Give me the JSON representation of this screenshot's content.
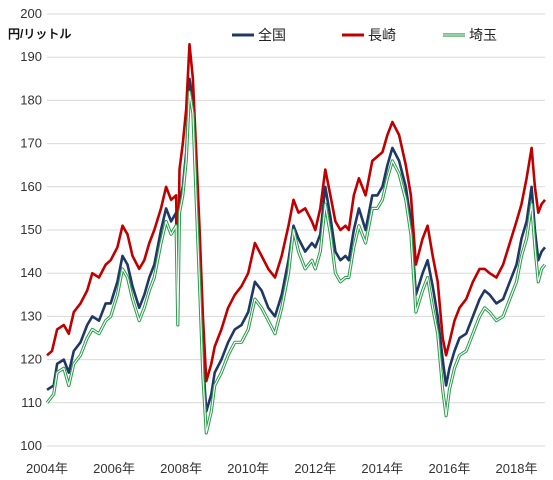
{
  "chart_data": {
    "type": "line",
    "ylabel": "円/リットル",
    "ylim": [
      100,
      200
    ],
    "yticks": [
      100,
      110,
      120,
      130,
      140,
      150,
      160,
      170,
      180,
      190,
      200
    ],
    "xlim": [
      2004,
      2018.85
    ],
    "xticks": [
      {
        "value": 2004,
        "label": "2004年"
      },
      {
        "value": 2006,
        "label": "2006年"
      },
      {
        "value": 2008,
        "label": "2008年"
      },
      {
        "value": 2010,
        "label": "2010年"
      },
      {
        "value": 2012,
        "label": "2012年"
      },
      {
        "value": 2014,
        "label": "2014年"
      },
      {
        "value": 2016,
        "label": "2016年"
      },
      {
        "value": 2018,
        "label": "2018年"
      }
    ],
    "grid": "horizontal",
    "legend": "top",
    "series": [
      {
        "name": "全国",
        "color": "#1f3864",
        "style": "solid",
        "points": [
          [
            2004.0,
            113
          ],
          [
            2004.2,
            114
          ],
          [
            2004.3,
            119
          ],
          [
            2004.5,
            120
          ],
          [
            2004.65,
            117
          ],
          [
            2004.8,
            122
          ],
          [
            2005.0,
            124
          ],
          [
            2005.2,
            128
          ],
          [
            2005.35,
            130
          ],
          [
            2005.55,
            129
          ],
          [
            2005.75,
            133
          ],
          [
            2005.9,
            133
          ],
          [
            2006.1,
            138
          ],
          [
            2006.25,
            144
          ],
          [
            2006.4,
            142
          ],
          [
            2006.55,
            137
          ],
          [
            2006.75,
            132
          ],
          [
            2006.9,
            135
          ],
          [
            2007.05,
            139
          ],
          [
            2007.2,
            142
          ],
          [
            2007.4,
            150
          ],
          [
            2007.55,
            155
          ],
          [
            2007.7,
            152
          ],
          [
            2007.85,
            154
          ],
          [
            2007.9,
            130
          ],
          [
            2007.95,
            156
          ],
          [
            2008.05,
            160
          ],
          [
            2008.15,
            168
          ],
          [
            2008.25,
            185
          ],
          [
            2008.35,
            180
          ],
          [
            2008.45,
            160
          ],
          [
            2008.55,
            140
          ],
          [
            2008.65,
            120
          ],
          [
            2008.75,
            108
          ],
          [
            2008.9,
            112
          ],
          [
            2009.0,
            117
          ],
          [
            2009.2,
            120
          ],
          [
            2009.4,
            124
          ],
          [
            2009.6,
            127
          ],
          [
            2009.8,
            128
          ],
          [
            2010.0,
            131
          ],
          [
            2010.2,
            138
          ],
          [
            2010.4,
            136
          ],
          [
            2010.6,
            132
          ],
          [
            2010.8,
            130
          ],
          [
            2011.0,
            135
          ],
          [
            2011.2,
            143
          ],
          [
            2011.35,
            151
          ],
          [
            2011.5,
            148
          ],
          [
            2011.7,
            145
          ],
          [
            2011.9,
            147
          ],
          [
            2012.0,
            146
          ],
          [
            2012.15,
            149
          ],
          [
            2012.3,
            160
          ],
          [
            2012.45,
            153
          ],
          [
            2012.6,
            145
          ],
          [
            2012.75,
            143
          ],
          [
            2012.9,
            144
          ],
          [
            2013.0,
            143
          ],
          [
            2013.15,
            150
          ],
          [
            2013.3,
            155
          ],
          [
            2013.5,
            150
          ],
          [
            2013.7,
            158
          ],
          [
            2013.85,
            158
          ],
          [
            2014.0,
            160
          ],
          [
            2014.15,
            165
          ],
          [
            2014.3,
            169
          ],
          [
            2014.5,
            166
          ],
          [
            2014.7,
            160
          ],
          [
            2014.85,
            152
          ],
          [
            2015.0,
            135
          ],
          [
            2015.2,
            140
          ],
          [
            2015.35,
            143
          ],
          [
            2015.5,
            137
          ],
          [
            2015.65,
            130
          ],
          [
            2015.8,
            120
          ],
          [
            2015.9,
            114
          ],
          [
            2016.0,
            118
          ],
          [
            2016.15,
            122
          ],
          [
            2016.3,
            125
          ],
          [
            2016.5,
            126
          ],
          [
            2016.7,
            130
          ],
          [
            2016.9,
            134
          ],
          [
            2017.05,
            136
          ],
          [
            2017.2,
            135
          ],
          [
            2017.4,
            133
          ],
          [
            2017.6,
            134
          ],
          [
            2017.8,
            138
          ],
          [
            2018.0,
            142
          ],
          [
            2018.15,
            148
          ],
          [
            2018.3,
            152
          ],
          [
            2018.45,
            160
          ],
          [
            2018.55,
            150
          ],
          [
            2018.65,
            143
          ],
          [
            2018.75,
            145
          ],
          [
            2018.85,
            146
          ]
        ]
      },
      {
        "name": "長崎",
        "color": "#c00000",
        "style": "solid",
        "points": [
          [
            2004.0,
            121
          ],
          [
            2004.15,
            122
          ],
          [
            2004.3,
            127
          ],
          [
            2004.5,
            128
          ],
          [
            2004.65,
            126
          ],
          [
            2004.8,
            131
          ],
          [
            2005.0,
            133
          ],
          [
            2005.2,
            136
          ],
          [
            2005.35,
            140
          ],
          [
            2005.55,
            139
          ],
          [
            2005.75,
            142
          ],
          [
            2005.9,
            143
          ],
          [
            2006.1,
            146
          ],
          [
            2006.25,
            151
          ],
          [
            2006.4,
            149
          ],
          [
            2006.55,
            144
          ],
          [
            2006.75,
            141
          ],
          [
            2006.9,
            143
          ],
          [
            2007.05,
            147
          ],
          [
            2007.2,
            150
          ],
          [
            2007.4,
            155
          ],
          [
            2007.55,
            160
          ],
          [
            2007.7,
            157
          ],
          [
            2007.85,
            158
          ],
          [
            2007.9,
            138
          ],
          [
            2007.95,
            164
          ],
          [
            2008.05,
            170
          ],
          [
            2008.15,
            178
          ],
          [
            2008.25,
            193
          ],
          [
            2008.35,
            185
          ],
          [
            2008.45,
            168
          ],
          [
            2008.55,
            150
          ],
          [
            2008.65,
            130
          ],
          [
            2008.75,
            115
          ],
          [
            2008.9,
            119
          ],
          [
            2009.0,
            123
          ],
          [
            2009.2,
            127
          ],
          [
            2009.4,
            132
          ],
          [
            2009.6,
            135
          ],
          [
            2009.8,
            137
          ],
          [
            2010.0,
            140
          ],
          [
            2010.2,
            147
          ],
          [
            2010.4,
            144
          ],
          [
            2010.6,
            141
          ],
          [
            2010.8,
            139
          ],
          [
            2011.0,
            144
          ],
          [
            2011.2,
            151
          ],
          [
            2011.35,
            157
          ],
          [
            2011.5,
            154
          ],
          [
            2011.7,
            155
          ],
          [
            2011.9,
            152
          ],
          [
            2012.0,
            150
          ],
          [
            2012.15,
            155
          ],
          [
            2012.3,
            164
          ],
          [
            2012.45,
            158
          ],
          [
            2012.6,
            152
          ],
          [
            2012.75,
            150
          ],
          [
            2012.9,
            151
          ],
          [
            2013.0,
            150
          ],
          [
            2013.15,
            158
          ],
          [
            2013.3,
            162
          ],
          [
            2013.5,
            158
          ],
          [
            2013.7,
            166
          ],
          [
            2013.85,
            167
          ],
          [
            2014.0,
            168
          ],
          [
            2014.15,
            172
          ],
          [
            2014.3,
            175
          ],
          [
            2014.5,
            172
          ],
          [
            2014.7,
            165
          ],
          [
            2014.85,
            158
          ],
          [
            2015.0,
            142
          ],
          [
            2015.2,
            148
          ],
          [
            2015.35,
            151
          ],
          [
            2015.5,
            144
          ],
          [
            2015.65,
            138
          ],
          [
            2015.8,
            125
          ],
          [
            2015.9,
            121
          ],
          [
            2016.0,
            124
          ],
          [
            2016.15,
            129
          ],
          [
            2016.3,
            132
          ],
          [
            2016.5,
            134
          ],
          [
            2016.7,
            138
          ],
          [
            2016.9,
            141
          ],
          [
            2017.05,
            141
          ],
          [
            2017.2,
            140
          ],
          [
            2017.4,
            139
          ],
          [
            2017.6,
            142
          ],
          [
            2017.8,
            147
          ],
          [
            2018.0,
            152
          ],
          [
            2018.15,
            156
          ],
          [
            2018.3,
            162
          ],
          [
            2018.45,
            169
          ],
          [
            2018.55,
            160
          ],
          [
            2018.65,
            154
          ],
          [
            2018.75,
            156
          ],
          [
            2018.85,
            157
          ]
        ]
      },
      {
        "name": "埼玉",
        "color": "#2e9e4f",
        "style": "double",
        "points": [
          [
            2004.0,
            110
          ],
          [
            2004.2,
            112
          ],
          [
            2004.3,
            117
          ],
          [
            2004.5,
            118
          ],
          [
            2004.65,
            114
          ],
          [
            2004.8,
            119
          ],
          [
            2005.0,
            121
          ],
          [
            2005.2,
            125
          ],
          [
            2005.35,
            127
          ],
          [
            2005.55,
            126
          ],
          [
            2005.75,
            129
          ],
          [
            2005.9,
            130
          ],
          [
            2006.1,
            135
          ],
          [
            2006.25,
            141
          ],
          [
            2006.4,
            139
          ],
          [
            2006.55,
            134
          ],
          [
            2006.75,
            129
          ],
          [
            2006.9,
            132
          ],
          [
            2007.05,
            136
          ],
          [
            2007.2,
            139
          ],
          [
            2007.4,
            147
          ],
          [
            2007.55,
            152
          ],
          [
            2007.7,
            149
          ],
          [
            2007.85,
            151
          ],
          [
            2007.9,
            128
          ],
          [
            2007.95,
            154
          ],
          [
            2008.05,
            158
          ],
          [
            2008.15,
            166
          ],
          [
            2008.25,
            182
          ],
          [
            2008.35,
            177
          ],
          [
            2008.45,
            157
          ],
          [
            2008.55,
            137
          ],
          [
            2008.65,
            116
          ],
          [
            2008.75,
            103
          ],
          [
            2008.9,
            108
          ],
          [
            2009.0,
            114
          ],
          [
            2009.2,
            117
          ],
          [
            2009.4,
            121
          ],
          [
            2009.6,
            124
          ],
          [
            2009.8,
            124
          ],
          [
            2010.0,
            127
          ],
          [
            2010.2,
            134
          ],
          [
            2010.4,
            132
          ],
          [
            2010.6,
            129
          ],
          [
            2010.8,
            126
          ],
          [
            2011.0,
            132
          ],
          [
            2011.2,
            140
          ],
          [
            2011.35,
            150
          ],
          [
            2011.5,
            145
          ],
          [
            2011.7,
            141
          ],
          [
            2011.9,
            143
          ],
          [
            2012.0,
            141
          ],
          [
            2012.15,
            145
          ],
          [
            2012.3,
            156
          ],
          [
            2012.45,
            149
          ],
          [
            2012.6,
            140
          ],
          [
            2012.75,
            138
          ],
          [
            2012.9,
            139
          ],
          [
            2013.0,
            139
          ],
          [
            2013.15,
            146
          ],
          [
            2013.3,
            151
          ],
          [
            2013.5,
            147
          ],
          [
            2013.7,
            155
          ],
          [
            2013.85,
            155
          ],
          [
            2014.0,
            157
          ],
          [
            2014.15,
            162
          ],
          [
            2014.3,
            166
          ],
          [
            2014.5,
            163
          ],
          [
            2014.7,
            157
          ],
          [
            2014.85,
            149
          ],
          [
            2015.0,
            131
          ],
          [
            2015.2,
            136
          ],
          [
            2015.35,
            139
          ],
          [
            2015.5,
            132
          ],
          [
            2015.65,
            126
          ],
          [
            2015.8,
            113
          ],
          [
            2015.9,
            107
          ],
          [
            2016.0,
            113
          ],
          [
            2016.15,
            118
          ],
          [
            2016.3,
            121
          ],
          [
            2016.5,
            122
          ],
          [
            2016.7,
            126
          ],
          [
            2016.9,
            130
          ],
          [
            2017.05,
            132
          ],
          [
            2017.2,
            131
          ],
          [
            2017.4,
            129
          ],
          [
            2017.6,
            130
          ],
          [
            2017.8,
            134
          ],
          [
            2018.0,
            138
          ],
          [
            2018.15,
            144
          ],
          [
            2018.3,
            148
          ],
          [
            2018.45,
            156
          ],
          [
            2018.55,
            146
          ],
          [
            2018.65,
            138
          ],
          [
            2018.75,
            141
          ],
          [
            2018.85,
            142
          ]
        ]
      }
    ]
  }
}
